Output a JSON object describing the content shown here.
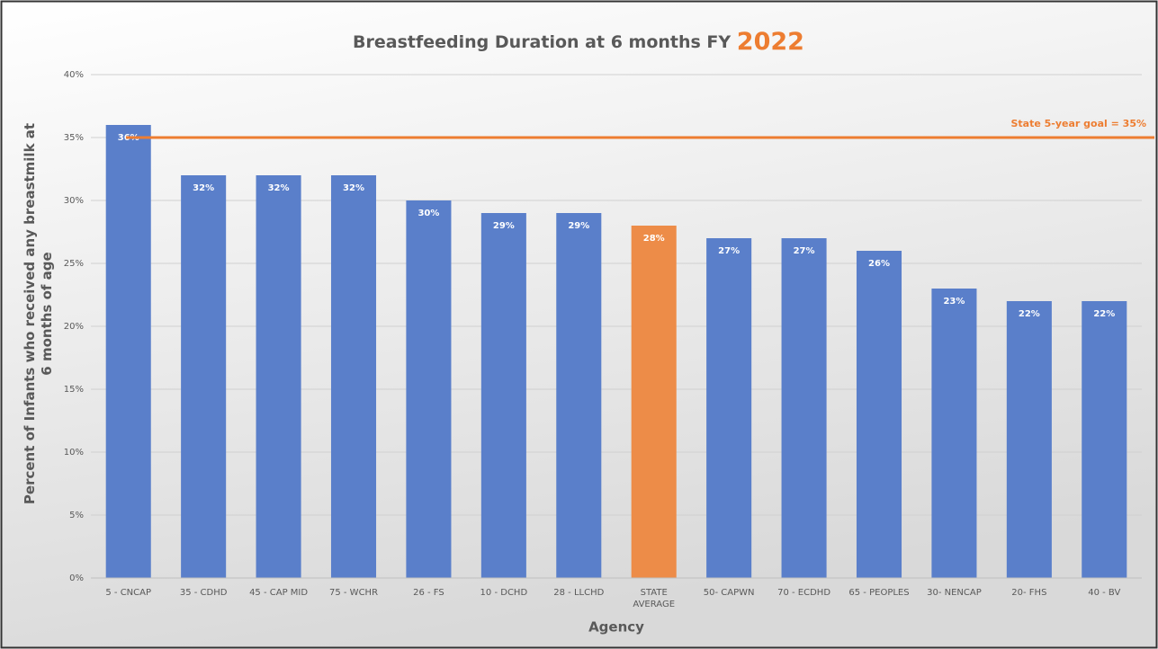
{
  "chart_data": {
    "type": "bar",
    "title": "Breastfeeding Duration at 6 months FY",
    "title_highlight": "2022",
    "x_label": "Agency",
    "y_label": "Percent of Infants who received any breastmilk at 6 months of age",
    "categories": [
      "5 - CNCAP",
      "35 - CDHD",
      "45 - CAP MID",
      "75 - WCHR",
      "26 - FS",
      "10 - DCHD",
      "28 - LLCHD",
      "STATE AVERAGE",
      "50- CAPWN",
      "70 - ECDHD",
      "65 - PEOPLES",
      "30- NENCAP",
      "20- FHS",
      "40 - BV"
    ],
    "values": [
      36,
      32,
      32,
      32,
      30,
      29,
      29,
      28,
      27,
      27,
      26,
      23,
      22,
      22
    ],
    "value_labels": [
      "36%",
      "32%",
      "32%",
      "32%",
      "30%",
      "29%",
      "29%",
      "28%",
      "27%",
      "27%",
      "26%",
      "23%",
      "22%",
      "22%"
    ],
    "colors": [
      "#5a7fca",
      "#5a7fca",
      "#5a7fca",
      "#5a7fca",
      "#5a7fca",
      "#5a7fca",
      "#5a7fca",
      "#ed8c48",
      "#5a7fca",
      "#5a7fca",
      "#5a7fca",
      "#5a7fca",
      "#5a7fca",
      "#5a7fca"
    ],
    "ylim": [
      0,
      40
    ],
    "yticks": [
      {
        "value": 0,
        "label": "0%"
      },
      {
        "value": 5,
        "label": "5%"
      },
      {
        "value": 10,
        "label": "10%"
      },
      {
        "value": 15,
        "label": "15%"
      },
      {
        "value": 20,
        "label": "20%"
      },
      {
        "value": 25,
        "label": "25%"
      },
      {
        "value": 30,
        "label": "30%"
      },
      {
        "value": 35,
        "label": "35%"
      },
      {
        "value": 40,
        "label": "40%"
      }
    ],
    "grid": true,
    "reference_line": {
      "value": 35,
      "label": "State 5-year goal = 35%",
      "color": "#ed7d31"
    }
  }
}
